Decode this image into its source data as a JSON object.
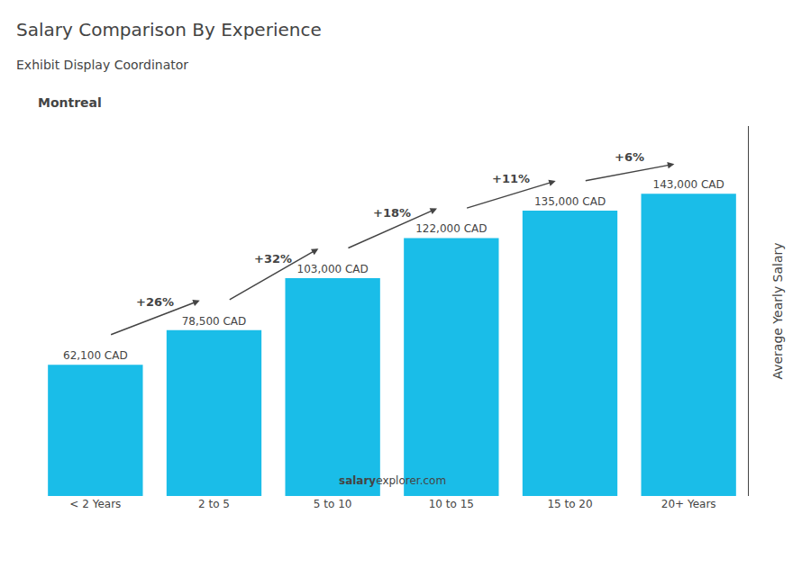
{
  "chart_data": {
    "type": "bar",
    "title": "Salary Comparison By Experience",
    "subtitle": "Exhibit Display Coordinator",
    "categories": [
      "< 2 Years",
      "2 to 5",
      "5 to 10",
      "10 to 15",
      "15 to 20",
      "20+ Years"
    ],
    "values": [
      62100,
      78500,
      103000,
      122000,
      135000,
      143000
    ],
    "value_labels": [
      "62,100 CAD",
      "78,500 CAD",
      "103,000 CAD",
      "122,000 CAD",
      "135,000 CAD",
      "143,000 CAD"
    ],
    "data_labels": true,
    "color": "#1ABDE8",
    "ylabel": "Average Yearly Salary",
    "ylim": [
      0,
      175000
    ],
    "tick_labels": "x",
    "grid": false,
    "annotations": [
      {
        "text": "+26%",
        "from": "< 2 Years",
        "to": "2 to 5"
      },
      {
        "text": "+32%",
        "from": "2 to 5",
        "to": "5 to 10"
      },
      {
        "text": "+18%",
        "from": "5 to 10",
        "to": "10 to 15"
      },
      {
        "text": "+11%",
        "from": "10 to 15",
        "to": "15 to 20"
      },
      {
        "text": "+6%",
        "from": "15 to 20",
        "to": "20+ Years"
      },
      {
        "text": "Montreal"
      },
      {
        "text": "salary"
      },
      {
        "text": "explorer.com"
      }
    ]
  }
}
